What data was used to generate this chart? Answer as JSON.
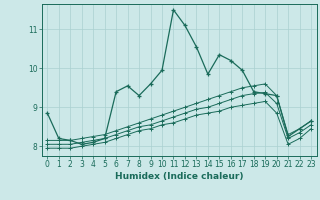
{
  "xlabel": "Humidex (Indice chaleur)",
  "bg_color": "#cce8e8",
  "line_color": "#1a6b5a",
  "grid_color": "#aad0d0",
  "xlim": [
    -0.5,
    23.5
  ],
  "ylim": [
    7.75,
    11.65
  ],
  "yticks": [
    8,
    9,
    10,
    11
  ],
  "xticks": [
    0,
    1,
    2,
    3,
    4,
    5,
    6,
    7,
    8,
    9,
    10,
    11,
    12,
    13,
    14,
    15,
    16,
    17,
    18,
    19,
    20,
    21,
    22,
    23
  ],
  "line1_x": [
    0,
    1,
    2,
    3,
    4,
    5,
    6,
    7,
    8,
    9,
    10,
    11,
    12,
    13,
    14,
    15,
    16,
    17,
    18,
    19,
    20,
    21,
    22,
    23
  ],
  "line1_y": [
    8.85,
    8.2,
    8.15,
    8.05,
    8.1,
    8.2,
    9.4,
    9.55,
    9.3,
    9.6,
    9.95,
    11.5,
    11.1,
    10.55,
    9.85,
    10.35,
    10.2,
    9.95,
    9.4,
    9.35,
    9.3,
    8.25,
    8.45,
    8.65
  ],
  "line2_x": [
    0,
    1,
    2,
    3,
    4,
    5,
    6,
    7,
    8,
    9,
    10,
    11,
    12,
    13,
    14,
    15,
    16,
    17,
    18,
    19,
    20,
    21,
    22,
    23
  ],
  "line2_y": [
    8.15,
    8.15,
    8.15,
    8.2,
    8.25,
    8.3,
    8.4,
    8.5,
    8.6,
    8.7,
    8.8,
    8.9,
    9.0,
    9.1,
    9.2,
    9.3,
    9.4,
    9.5,
    9.55,
    9.6,
    9.3,
    8.3,
    8.45,
    8.65
  ],
  "line3_x": [
    0,
    1,
    2,
    3,
    4,
    5,
    6,
    7,
    8,
    9,
    10,
    11,
    12,
    13,
    14,
    15,
    16,
    17,
    18,
    19,
    20,
    21,
    22,
    23
  ],
  "line3_y": [
    8.05,
    8.05,
    8.05,
    8.1,
    8.15,
    8.2,
    8.3,
    8.4,
    8.5,
    8.55,
    8.65,
    8.75,
    8.85,
    8.95,
    9.0,
    9.1,
    9.2,
    9.3,
    9.35,
    9.38,
    9.1,
    8.2,
    8.35,
    8.55
  ],
  "line4_x": [
    0,
    1,
    2,
    3,
    4,
    5,
    6,
    7,
    8,
    9,
    10,
    11,
    12,
    13,
    14,
    15,
    16,
    17,
    18,
    19,
    20,
    21,
    22,
    23
  ],
  "line4_y": [
    7.95,
    7.95,
    7.95,
    8.0,
    8.05,
    8.1,
    8.2,
    8.3,
    8.4,
    8.45,
    8.55,
    8.6,
    8.7,
    8.8,
    8.85,
    8.9,
    9.0,
    9.05,
    9.1,
    9.15,
    8.85,
    8.05,
    8.2,
    8.45
  ]
}
